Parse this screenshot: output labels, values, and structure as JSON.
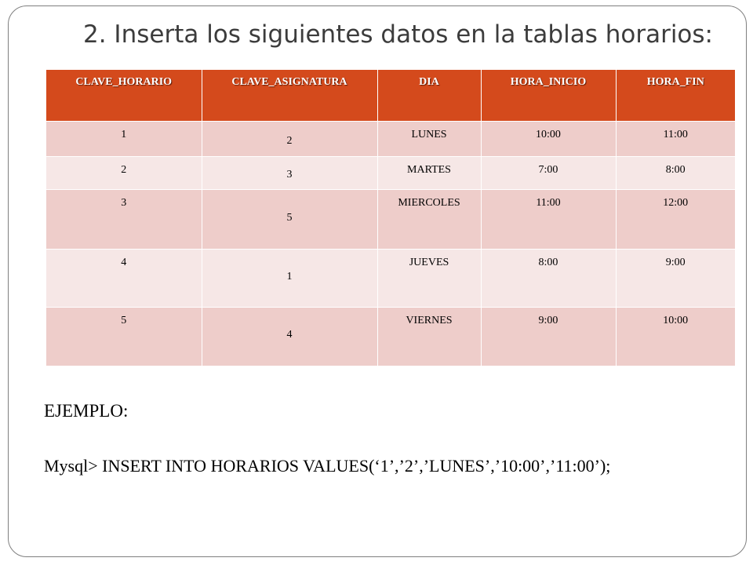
{
  "slide": {
    "title": "2. Inserta los siguientes datos en la tablas horarios:",
    "table": {
      "headers": [
        "CLAVE_HORARIO",
        "CLAVE_ASIGNATURA",
        "DIA",
        "HORA_INICIO",
        "HORA_FIN"
      ],
      "rows": [
        [
          "1",
          "2",
          "LUNES",
          "10:00",
          "11:00"
        ],
        [
          "2",
          "3",
          "MARTES",
          "7:00",
          "8:00"
        ],
        [
          "3",
          "5",
          "MIERCOLES",
          "11:00",
          "12:00"
        ],
        [
          "4",
          "1",
          "JUEVES",
          "8:00",
          "9:00"
        ],
        [
          "5",
          "4",
          "VIERNES",
          "9:00",
          "10:00"
        ]
      ]
    },
    "example_label": "EJEMPLO:",
    "example_sql": "Mysql> INSERT INTO HORARIOS VALUES(‘1’,’2’,’LUNES’,’10:00’,’11:00’);"
  },
  "colors": {
    "header_bg": "#d44a1c",
    "row_odd_bg": "#eecdca",
    "row_even_bg": "#f6e7e6",
    "title_text": "#3c3c3c"
  }
}
